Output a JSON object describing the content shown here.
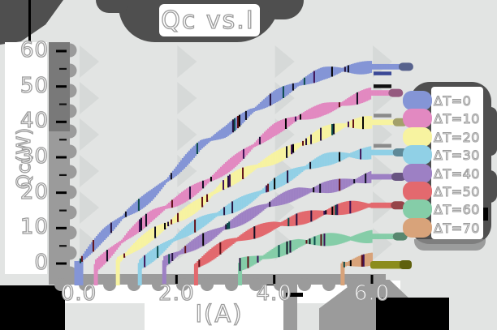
{
  "title": "Qc vs.I",
  "axes": {
    "xlabel": "I(A)",
    "ylabel": "Qc(W)",
    "x_tick_labels": [
      "0.0",
      "2.0",
      "4.0",
      "6.0"
    ],
    "y_tick_labels": [
      "0",
      "10",
      "20",
      "30",
      "40",
      "50",
      "60"
    ]
  },
  "legend": {
    "items": [
      {
        "label": "ΔT=0",
        "color": "#8495d6"
      },
      {
        "label": "ΔT=10",
        "color": "#e289c1"
      },
      {
        "label": "ΔT=20",
        "color": "#f7f3a0"
      },
      {
        "label": "ΔT=30",
        "color": "#90d0e6"
      },
      {
        "label": "ΔT=40",
        "color": "#9d80c4"
      },
      {
        "label": "ΔT=50",
        "color": "#e3696e"
      },
      {
        "label": "ΔT=60",
        "color": "#85cda8"
      },
      {
        "label": "ΔT=70",
        "color": "#d8a37a"
      }
    ]
  },
  "chart_data": {
    "type": "line",
    "title": "Qc vs.I",
    "xlabel": "I(A)",
    "ylabel": "Qc(W)",
    "xlim": [
      0,
      6.5
    ],
    "ylim": [
      0,
      60
    ],
    "x_ticks": [
      0,
      2,
      4,
      6
    ],
    "y_ticks": [
      0,
      10,
      20,
      30,
      40,
      50,
      60
    ],
    "grid": "off",
    "legend_position": "right",
    "style": "hand-drawn xkcd-like, thick hatched ribbon lines, cooling power vs current curves for a thermoelectric module",
    "series": [
      {
        "name": "ΔT=0",
        "color": "#8495d6",
        "zero_crossing_A": 0.0,
        "end_value_W": 56,
        "points": [
          [
            0,
            0
          ],
          [
            0.5,
            8
          ],
          [
            1,
            15
          ],
          [
            1.5,
            20
          ],
          [
            2,
            26
          ],
          [
            2.5,
            33
          ],
          [
            3,
            37
          ],
          [
            3.5,
            43
          ],
          [
            4,
            47
          ],
          [
            4.5,
            50
          ],
          [
            5,
            53
          ],
          [
            5.5,
            55
          ],
          [
            6,
            56
          ]
        ],
        "tail_overshoot_A": 0.58
      },
      {
        "name": "ΔT=10",
        "color": "#e289c1",
        "zero_crossing_A": 0.35,
        "end_value_W": 48,
        "points": [
          [
            0.35,
            0
          ],
          [
            1,
            8
          ],
          [
            1.5,
            13
          ],
          [
            2,
            17
          ],
          [
            2.5,
            22
          ],
          [
            3,
            27
          ],
          [
            3.5,
            32
          ],
          [
            4,
            37
          ],
          [
            4.5,
            41
          ],
          [
            5,
            44
          ],
          [
            5.5,
            46
          ],
          [
            6,
            48
          ]
        ],
        "tail_overshoot_A": 0.37
      },
      {
        "name": "ΔT=20",
        "color": "#f7f3a0",
        "zero_crossing_A": 0.8,
        "end_value_W": 40,
        "points": [
          [
            0.8,
            0
          ],
          [
            1.5,
            8
          ],
          [
            2,
            13
          ],
          [
            2.5,
            17
          ],
          [
            3,
            22
          ],
          [
            3.5,
            26
          ],
          [
            4,
            30
          ],
          [
            4.5,
            34
          ],
          [
            5,
            37
          ],
          [
            5.5,
            39
          ],
          [
            6,
            40
          ]
        ],
        "tail_overshoot_A": 0.46
      },
      {
        "name": "ΔT=30",
        "color": "#90d0e6",
        "zero_crossing_A": 1.25,
        "end_value_W": 32,
        "points": [
          [
            1.25,
            0
          ],
          [
            2,
            7
          ],
          [
            2.5,
            11
          ],
          [
            3,
            15
          ],
          [
            3.5,
            19
          ],
          [
            4,
            23
          ],
          [
            4.5,
            26
          ],
          [
            5,
            29
          ],
          [
            5.5,
            31
          ],
          [
            6,
            32
          ]
        ],
        "tail_overshoot_A": 0.46
      },
      {
        "name": "ΔT=40",
        "color": "#9d80c4",
        "zero_crossing_A": 1.75,
        "end_value_W": 24,
        "points": [
          [
            1.75,
            0
          ],
          [
            2.5,
            7
          ],
          [
            3,
            11
          ],
          [
            3.5,
            14
          ],
          [
            4,
            17
          ],
          [
            4.5,
            20
          ],
          [
            5,
            22
          ],
          [
            5.5,
            23
          ],
          [
            6,
            24
          ]
        ],
        "tail_overshoot_A": 0.43
      },
      {
        "name": "ΔT=50",
        "color": "#e3696e",
        "zero_crossing_A": 2.4,
        "end_value_W": 16,
        "points": [
          [
            2.4,
            0
          ],
          [
            3,
            5
          ],
          [
            3.5,
            8
          ],
          [
            4,
            11
          ],
          [
            4.5,
            13
          ],
          [
            5,
            14
          ],
          [
            5.5,
            15
          ],
          [
            6,
            16
          ]
        ],
        "tail_overshoot_A": 0.42
      },
      {
        "name": "ΔT=60",
        "color": "#85cda8",
        "zero_crossing_A": 3.3,
        "end_value_W": 8,
        "points": [
          [
            3.3,
            0
          ],
          [
            4,
            3
          ],
          [
            4.5,
            5
          ],
          [
            5,
            6
          ],
          [
            5.5,
            7
          ],
          [
            6,
            8
          ]
        ],
        "tail_overshoot_A": 0.46
      },
      {
        "name": "ΔT=70",
        "color": "#d8a37a",
        "zero_crossing_A": 5.4,
        "end_value_W": 1,
        "points": [
          [
            5.4,
            0
          ],
          [
            5.7,
            0.6
          ],
          [
            6,
            1
          ]
        ],
        "tail_overshoot_A": 0
      }
    ]
  },
  "colors": {
    "background": "#e2e4e3",
    "triangle_decor": "#d6d9d8",
    "axis_band": "#9b9b9b",
    "shadow_blob": "#4f4f4f",
    "black": "#000000",
    "text_fill": "#ffffff",
    "text_outline": "#9c9c9c",
    "hatch_darks": [
      "#0d0d20",
      "#000000",
      "#0a4a4a",
      "#3d1156",
      "#611018",
      "#24123e"
    ],
    "olive_tail": "#8b8c1c",
    "olive_nub": "#5f600e",
    "tail_accents": {
      "ΔT=0": {
        "pos": "below",
        "color": "#3a4896"
      },
      "ΔT=10": {
        "pos": "above",
        "color": "#111111"
      },
      "ΔT=20": {
        "pos": "above",
        "color": "#8a8a8a"
      },
      "ΔT=30": {
        "pos": "above",
        "color": "#8a8a8a"
      }
    }
  }
}
